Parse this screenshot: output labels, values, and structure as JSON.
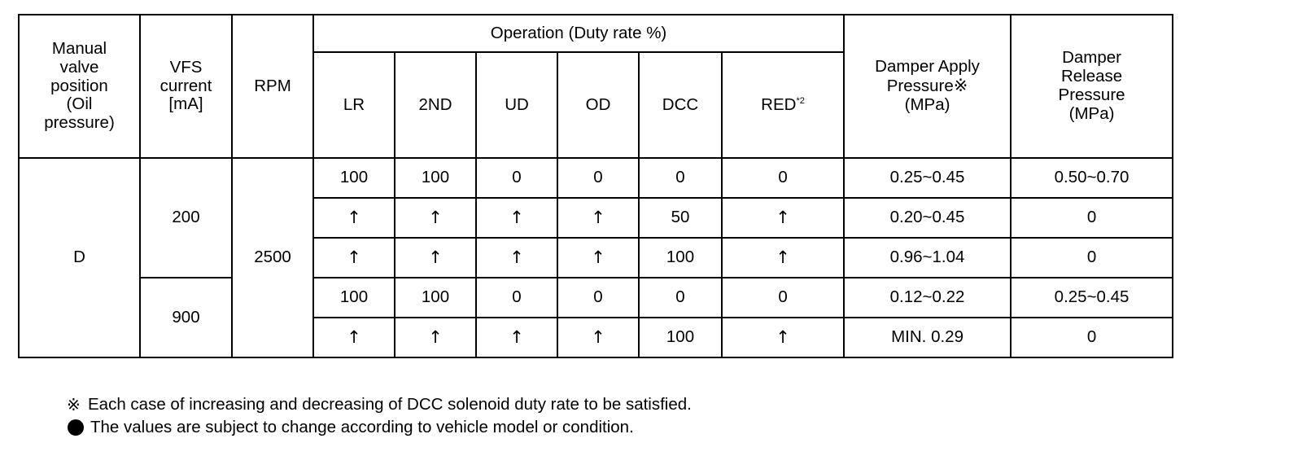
{
  "headers": {
    "manual_valve_line1": "Manual",
    "manual_valve_line2": "valve",
    "manual_valve_line3": "position",
    "manual_valve_line4": "(Oil",
    "manual_valve_line5": "pressure)",
    "vfs_line1": "VFS",
    "vfs_line2": "current",
    "vfs_line3": "[mA]",
    "rpm": "RPM",
    "operation_group": "Operation (Duty rate %)",
    "lr": "LR",
    "second": "2ND",
    "ud": "UD",
    "od": "OD",
    "dcc": "DCC",
    "red": "RED",
    "red_note": "*2",
    "apply_line1": "Damper Apply",
    "apply_line2": "Pressure",
    "apply_mark": "※",
    "apply_line3": "(MPa)",
    "release_line1": "Damper",
    "release_line2": "Release",
    "release_line3": "Pressure",
    "release_line4": "(MPa)"
  },
  "merged": {
    "manual_valve_position": "D",
    "vfs_group_1": "200",
    "vfs_group_2": "900",
    "rpm": "2500"
  },
  "rows": [
    {
      "lr": "100",
      "second": "100",
      "ud": "0",
      "od": "0",
      "dcc": "0",
      "red": "0",
      "apply": "0.25~0.45",
      "release": "0.50~0.70"
    },
    {
      "lr": "↑",
      "second": "↑",
      "ud": "↑",
      "od": "↑",
      "dcc": "50",
      "red": "↑",
      "apply": "0.20~0.45",
      "release": "0"
    },
    {
      "lr": "↑",
      "second": "↑",
      "ud": "↑",
      "od": "↑",
      "dcc": "100",
      "red": "↑",
      "apply": "0.96~1.04",
      "release": "0"
    },
    {
      "lr": "100",
      "second": "100",
      "ud": "0",
      "od": "0",
      "dcc": "0",
      "red": "0",
      "apply": "0.12~0.22",
      "release": "0.25~0.45"
    },
    {
      "lr": "↑",
      "second": "↑",
      "ud": "↑",
      "od": "↑",
      "dcc": "100",
      "red": "↑",
      "apply": "MIN. 0.29",
      "release": "0"
    }
  ],
  "footnotes": {
    "note1_mark": "※",
    "note1": "Each case of increasing and decreasing of DCC solenoid duty rate to be satisfied.",
    "note2_icon": "filled-circle-bullet-icon",
    "note2": "The values are subject to change according to vehicle model or condition."
  }
}
